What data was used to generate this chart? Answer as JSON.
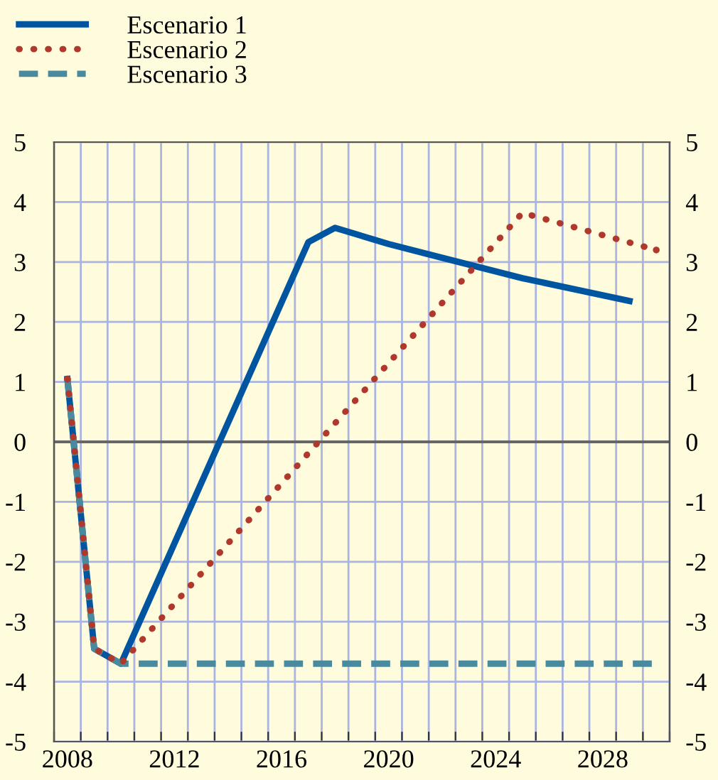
{
  "chart_data": {
    "type": "line",
    "x": [
      2008.5,
      2009.5,
      2010.5,
      2017.5,
      2018.5,
      2020.5,
      2022.5,
      2025.5,
      2029.5
    ],
    "series": [
      {
        "name": "Escenario 1",
        "color": "#0055a0",
        "line_style": "solid",
        "values": [
          1.05,
          -3.45,
          -3.7,
          3.33,
          3.57,
          3.3,
          3.07,
          2.73,
          2.35
        ]
      },
      {
        "name": "Escenario 2",
        "color": "#b0392e",
        "line_style": "dotted",
        "x": [
          2008.5,
          2009.5,
          2010.5,
          2025.5,
          2030.5
        ],
        "values": [
          1.05,
          -3.45,
          -3.7,
          3.82,
          3.2
        ]
      },
      {
        "name": "Escenario 3",
        "color": "#4a8a9e",
        "line_style": "dashed",
        "x": [
          2008.5,
          2009.5,
          2010.5,
          2030.5
        ],
        "values": [
          1.05,
          -3.45,
          -3.7,
          -3.7
        ]
      }
    ],
    "xlim": [
      2008,
      2031
    ],
    "xticks": [
      {
        "value": 2008,
        "label": null
      },
      {
        "value": 2009,
        "label": null
      },
      {
        "value": 2010,
        "label": null
      },
      {
        "value": 2011,
        "label": null
      },
      {
        "value": 2012,
        "label": null
      },
      {
        "value": 2013,
        "label": null
      },
      {
        "value": 2014,
        "label": null
      },
      {
        "value": 2015,
        "label": null
      },
      {
        "value": 2016,
        "label": null
      },
      {
        "value": 2017,
        "label": null
      },
      {
        "value": 2018,
        "label": null
      },
      {
        "value": 2019,
        "label": null
      },
      {
        "value": 2020,
        "label": null
      },
      {
        "value": 2021,
        "label": null
      },
      {
        "value": 2022,
        "label": null
      },
      {
        "value": 2023,
        "label": null
      },
      {
        "value": 2024,
        "label": null
      },
      {
        "value": 2025,
        "label": null
      },
      {
        "value": 2026,
        "label": null
      },
      {
        "value": 2027,
        "label": null
      },
      {
        "value": 2028,
        "label": null
      },
      {
        "value": 2029,
        "label": null
      },
      {
        "value": 2030,
        "label": null
      },
      {
        "value": 2031,
        "label": null
      },
      {
        "value": 2008.5,
        "label": "2008"
      },
      {
        "value": 2012.5,
        "label": "2012"
      },
      {
        "value": 2016.5,
        "label": "2016"
      },
      {
        "value": 2020.5,
        "label": "2020"
      },
      {
        "value": 2024.5,
        "label": "2024"
      },
      {
        "value": 2028.5,
        "label": "2028"
      }
    ],
    "ylim": [
      -5,
      5
    ],
    "yticks": [
      -5,
      -4,
      -3,
      -2,
      -1,
      0,
      1,
      2,
      3,
      4,
      5
    ],
    "y2lim": [
      -5,
      5
    ],
    "y2ticks": [
      -5,
      -4,
      -3,
      -2,
      -1,
      0,
      1,
      2,
      3,
      4,
      5
    ],
    "ref_lines": [
      {
        "axis": "y",
        "value": 0,
        "label": null,
        "color": "#666666"
      }
    ],
    "grid": true,
    "legend": "top left",
    "marker": "none"
  }
}
